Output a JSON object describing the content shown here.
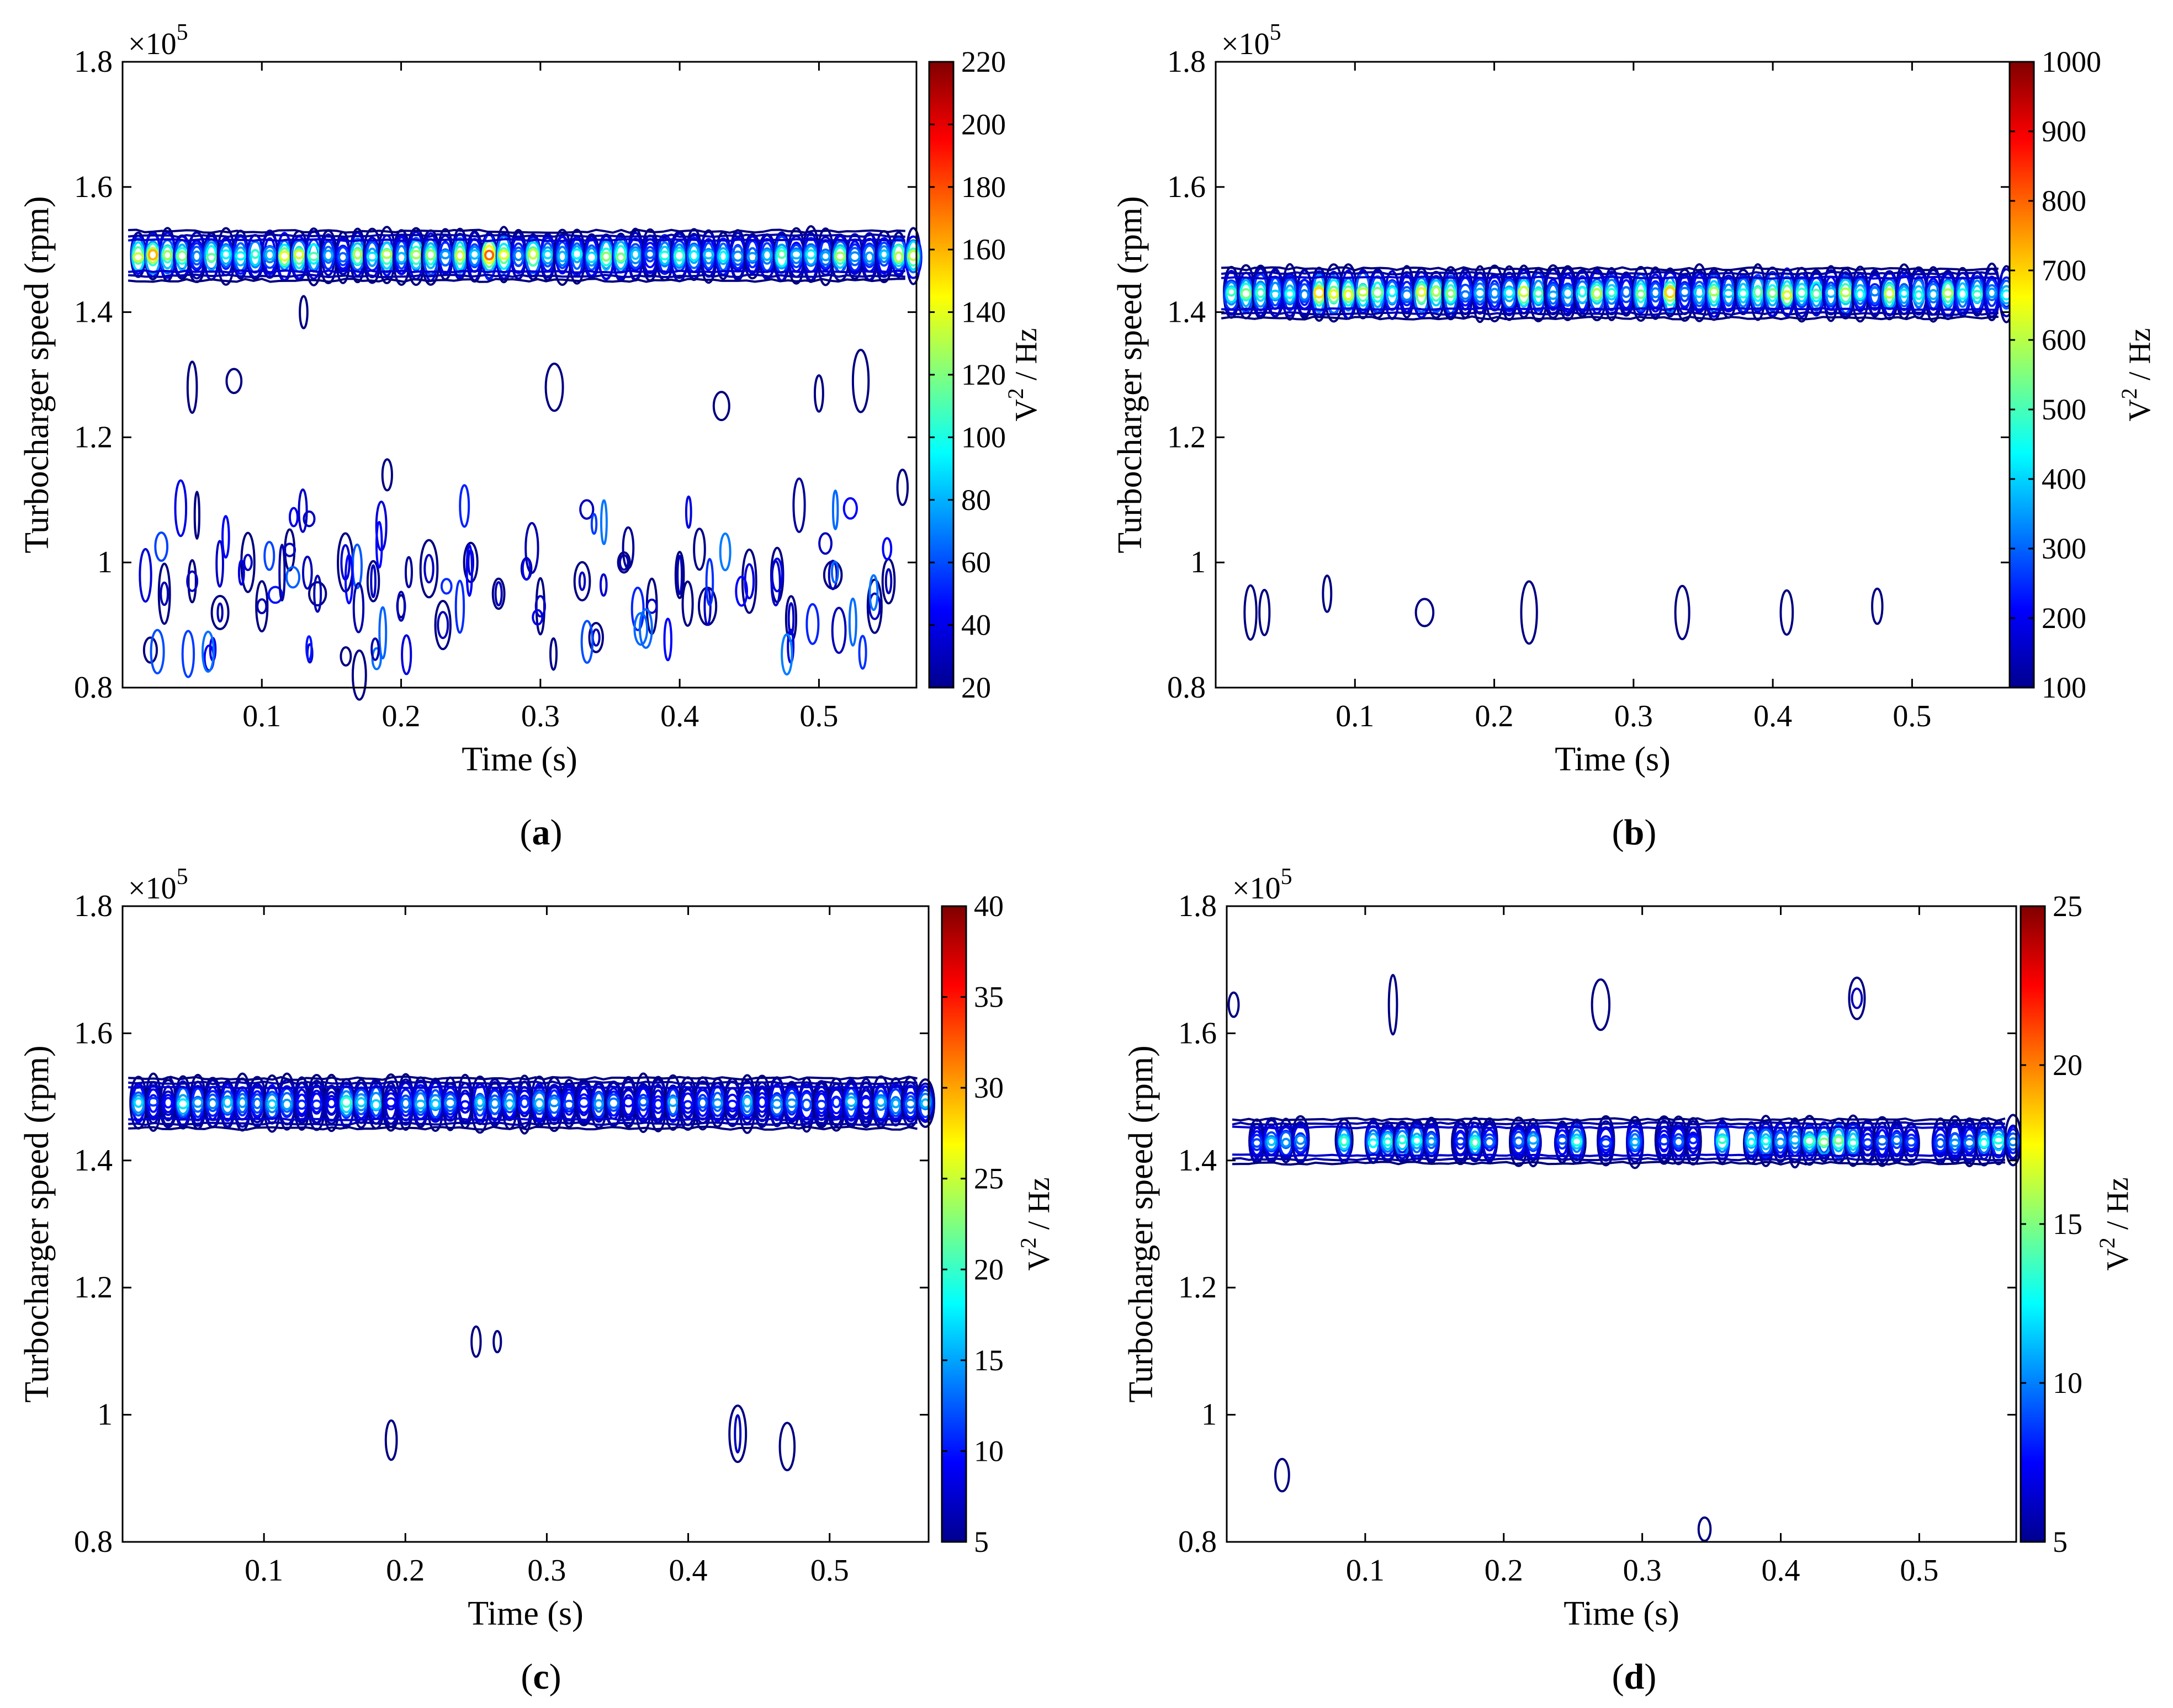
{
  "figure_title": "",
  "chart_data": [
    {
      "type": "contour",
      "panel": "a",
      "caption_letter": "a",
      "xlabel": "Time (s)",
      "ylabel": "Turbocharger speed (rpm)",
      "y_multiplier": "×10",
      "y_exponent": "5",
      "xlim": [
        0.0,
        0.57
      ],
      "ylim": [
        0.8,
        1.8
      ],
      "xticks": [
        0.1,
        0.2,
        0.3,
        0.4,
        0.5
      ],
      "xtick_labels": [
        "0.1",
        "0.2",
        "0.3",
        "0.4",
        "0.5"
      ],
      "yticks": [
        0.8,
        1.0,
        1.2,
        1.4,
        1.6,
        1.8
      ],
      "ytick_labels": [
        "0.8",
        "1",
        "1.2",
        "1.4",
        "1.6",
        "1.8"
      ],
      "colorbar": {
        "label_base": "V",
        "label_sup": "2",
        "label_rest": " / Hz",
        "min": 20,
        "max": 220,
        "ticks": [
          20,
          40,
          60,
          80,
          100,
          120,
          140,
          160,
          180,
          200,
          220
        ],
        "tick_labels": [
          "20",
          "40",
          "60",
          "80",
          "100",
          "120",
          "140",
          "160",
          "180",
          "200",
          "220"
        ]
      },
      "band": {
        "center": 1.49,
        "half_width": 0.04,
        "peak_value": 215,
        "seed": 11
      },
      "scatter_seed": 3,
      "islands": [
        {
          "t": 0.02,
          "s": 0.86,
          "v": 35
        },
        {
          "t": 0.03,
          "s": 0.95,
          "v": 40
        },
        {
          "t": 0.05,
          "s": 1.28,
          "v": 30
        },
        {
          "t": 0.05,
          "s": 0.97,
          "v": 45
        },
        {
          "t": 0.07,
          "s": 0.92,
          "v": 40
        },
        {
          "t": 0.08,
          "s": 1.29,
          "v": 30
        },
        {
          "t": 0.09,
          "s": 1.0,
          "v": 45
        },
        {
          "t": 0.1,
          "s": 0.93,
          "v": 40
        },
        {
          "t": 0.12,
          "s": 1.02,
          "v": 45
        },
        {
          "t": 0.13,
          "s": 1.4,
          "v": 35
        },
        {
          "t": 0.14,
          "s": 0.95,
          "v": 40
        },
        {
          "t": 0.16,
          "s": 1.0,
          "v": 50
        },
        {
          "t": 0.17,
          "s": 0.82,
          "v": 35
        },
        {
          "t": 0.18,
          "s": 0.97,
          "v": 45
        },
        {
          "t": 0.19,
          "s": 1.14,
          "v": 35
        },
        {
          "t": 0.2,
          "s": 0.93,
          "v": 40
        },
        {
          "t": 0.22,
          "s": 0.99,
          "v": 45
        },
        {
          "t": 0.23,
          "s": 0.9,
          "v": 40
        },
        {
          "t": 0.25,
          "s": 1.0,
          "v": 45
        },
        {
          "t": 0.27,
          "s": 0.95,
          "v": 40
        },
        {
          "t": 0.29,
          "s": 0.99,
          "v": 60
        },
        {
          "t": 0.3,
          "s": 0.93,
          "v": 45
        },
        {
          "t": 0.31,
          "s": 1.28,
          "v": 30
        },
        {
          "t": 0.33,
          "s": 0.97,
          "v": 45
        },
        {
          "t": 0.34,
          "s": 0.88,
          "v": 40
        },
        {
          "t": 0.36,
          "s": 1.0,
          "v": 40
        },
        {
          "t": 0.38,
          "s": 0.93,
          "v": 45
        },
        {
          "t": 0.4,
          "s": 0.98,
          "v": 40
        },
        {
          "t": 0.42,
          "s": 0.93,
          "v": 45
        },
        {
          "t": 0.43,
          "s": 1.25,
          "v": 35
        },
        {
          "t": 0.45,
          "s": 0.97,
          "v": 55
        },
        {
          "t": 0.47,
          "s": 0.98,
          "v": 60
        },
        {
          "t": 0.48,
          "s": 0.91,
          "v": 45
        },
        {
          "t": 0.5,
          "s": 1.27,
          "v": 30
        },
        {
          "t": 0.51,
          "s": 0.98,
          "v": 40
        },
        {
          "t": 0.53,
          "s": 1.29,
          "v": 35
        },
        {
          "t": 0.54,
          "s": 0.93,
          "v": 45
        },
        {
          "t": 0.55,
          "s": 0.97,
          "v": 40
        },
        {
          "t": 0.56,
          "s": 1.12,
          "v": 35
        }
      ]
    },
    {
      "type": "contour",
      "panel": "b",
      "caption_letter": "b",
      "xlabel": "Time (s)",
      "ylabel": "Turbocharger speed (rpm)",
      "y_multiplier": "×10",
      "y_exponent": "5",
      "xlim": [
        0.0,
        0.57
      ],
      "ylim": [
        0.8,
        1.8
      ],
      "xticks": [
        0.1,
        0.2,
        0.3,
        0.4,
        0.5
      ],
      "xtick_labels": [
        "0.1",
        "0.2",
        "0.3",
        "0.4",
        "0.5"
      ],
      "yticks": [
        0.8,
        1.0,
        1.2,
        1.4,
        1.6,
        1.8
      ],
      "ytick_labels": [
        "0.8",
        "1",
        "1.2",
        "1.4",
        "1.6",
        "1.8"
      ],
      "colorbar": {
        "label_base": "V",
        "label_sup": "2",
        "label_rest": " / Hz",
        "min": 100,
        "max": 1000,
        "ticks": [
          100,
          200,
          300,
          400,
          500,
          600,
          700,
          800,
          900,
          1000
        ],
        "tick_labels": [
          "100",
          "200",
          "300",
          "400",
          "500",
          "600",
          "700",
          "800",
          "900",
          "1000"
        ]
      },
      "band": {
        "center": 1.43,
        "half_width": 0.04,
        "peak_value": 980,
        "seed": 27
      },
      "scatter_seed": 0,
      "islands": [
        {
          "t": 0.025,
          "s": 0.92,
          "v": 130
        },
        {
          "t": 0.035,
          "s": 0.92,
          "v": 115
        },
        {
          "t": 0.08,
          "s": 0.95,
          "v": 120
        },
        {
          "t": 0.15,
          "s": 0.92,
          "v": 105
        },
        {
          "t": 0.225,
          "s": 0.92,
          "v": 130
        },
        {
          "t": 0.335,
          "s": 0.92,
          "v": 130
        },
        {
          "t": 0.41,
          "s": 0.92,
          "v": 105
        },
        {
          "t": 0.475,
          "s": 0.93,
          "v": 140
        }
      ]
    },
    {
      "type": "contour",
      "panel": "c",
      "caption_letter": "c",
      "xlabel": "Time (s)",
      "ylabel": "Turbocharger speed (rpm)",
      "y_multiplier": "×10",
      "y_exponent": "5",
      "xlim": [
        0.0,
        0.57
      ],
      "ylim": [
        0.8,
        1.8
      ],
      "xticks": [
        0.1,
        0.2,
        0.3,
        0.4,
        0.5
      ],
      "xtick_labels": [
        "0.1",
        "0.2",
        "0.3",
        "0.4",
        "0.5"
      ],
      "yticks": [
        0.8,
        1.0,
        1.2,
        1.4,
        1.6,
        1.8
      ],
      "ytick_labels": [
        "0.8",
        "1",
        "1.2",
        "1.4",
        "1.6",
        "1.8"
      ],
      "colorbar": {
        "label_base": "V",
        "label_sup": "2",
        "label_rest": " / Hz",
        "min": 5,
        "max": 40,
        "ticks": [
          5,
          10,
          15,
          20,
          25,
          30,
          35,
          40
        ],
        "tick_labels": [
          "5",
          "10",
          "15",
          "20",
          "25",
          "30",
          "35",
          "40"
        ]
      },
      "band": {
        "center": 1.49,
        "half_width": 0.04,
        "peak_value": 24,
        "seed": 41
      },
      "scatter_seed": 0,
      "islands": [
        {
          "t": 0.19,
          "s": 0.96,
          "v": 6
        },
        {
          "t": 0.25,
          "s": 1.115,
          "v": 6.5
        },
        {
          "t": 0.265,
          "s": 1.115,
          "v": 6
        },
        {
          "t": 0.435,
          "s": 0.97,
          "v": 9
        },
        {
          "t": 0.47,
          "s": 0.95,
          "v": 7
        }
      ]
    },
    {
      "type": "contour",
      "panel": "d",
      "caption_letter": "d",
      "xlabel": "Time (s)",
      "ylabel": "Turbocharger speed (rpm)",
      "y_multiplier": "×10",
      "y_exponent": "5",
      "xlim": [
        0.0,
        0.57
      ],
      "ylim": [
        0.8,
        1.8
      ],
      "xticks": [
        0.1,
        0.2,
        0.3,
        0.4,
        0.5
      ],
      "xtick_labels": [
        "0.1",
        "0.2",
        "0.3",
        "0.4",
        "0.5"
      ],
      "yticks": [
        0.8,
        1.0,
        1.2,
        1.4,
        1.6,
        1.8
      ],
      "ytick_labels": [
        "0.8",
        "1",
        "1.2",
        "1.4",
        "1.6",
        "1.8"
      ],
      "colorbar": {
        "label_base": "V",
        "label_sup": "2",
        "label_rest": " / Hz",
        "min": 5,
        "max": 25,
        "ticks": [
          5,
          10,
          15,
          20,
          25
        ],
        "tick_labels": [
          "5",
          "10",
          "15",
          "20",
          "25"
        ]
      },
      "band": {
        "center": 1.43,
        "half_width": 0.035,
        "peak_value": 19,
        "seed": 53,
        "broken": true
      },
      "scatter_seed": 0,
      "islands": [
        {
          "t": 0.005,
          "s": 1.645,
          "v": 5.5
        },
        {
          "t": 0.12,
          "s": 1.645,
          "v": 6
        },
        {
          "t": 0.27,
          "s": 1.645,
          "v": 6.5
        },
        {
          "t": 0.455,
          "s": 1.655,
          "v": 7
        },
        {
          "t": 0.04,
          "s": 0.905,
          "v": 6.5
        },
        {
          "t": 0.345,
          "s": 0.82,
          "v": 6
        }
      ]
    }
  ]
}
